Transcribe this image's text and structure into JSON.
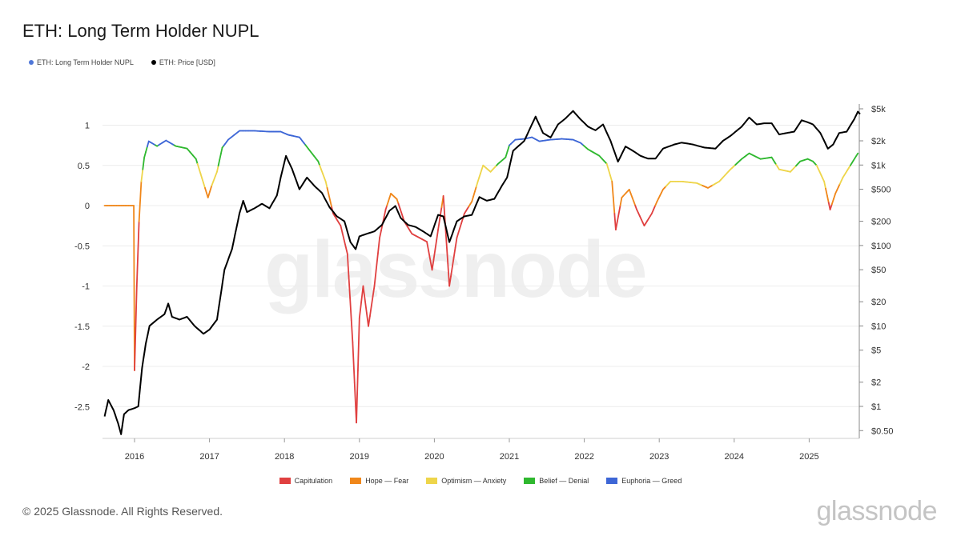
{
  "title": "ETH: Long Term Holder NUPL",
  "legend_top": [
    {
      "label": "ETH: Long Term Holder NUPL",
      "color": "#4f77d8"
    },
    {
      "label": "ETH: Price [USD]",
      "color": "#000000"
    }
  ],
  "legend_bottom": [
    {
      "label": "Capitulation",
      "color": "#e04040"
    },
    {
      "label": "Hope — Fear",
      "color": "#f0871a"
    },
    {
      "label": "Optimism — Anxiety",
      "color": "#eed54a"
    },
    {
      "label": "Belief — Denial",
      "color": "#2fb82f"
    },
    {
      "label": "Euphoria — Greed",
      "color": "#3d66d6"
    }
  ],
  "watermark": "glassnode",
  "footer": {
    "copyright": "© 2025 Glassnode. All Rights Reserved.",
    "brand": "glassnode"
  },
  "chart_data": {
    "type": "line",
    "x_ticks": [
      "2016",
      "2017",
      "2018",
      "2019",
      "2020",
      "2021",
      "2022",
      "2023",
      "2024",
      "2025"
    ],
    "y_left_ticks": [
      "1",
      "0.5",
      "0",
      "-0.5",
      "-1",
      "-1.5",
      "-2",
      "-2.5"
    ],
    "y_left_range": [
      -2.9,
      1.2
    ],
    "y_right_ticks": [
      "$5k",
      "$2k",
      "$1k",
      "$500",
      "$200",
      "$100",
      "$50",
      "$20",
      "$10",
      "$5",
      "$2",
      "$1",
      "$0.50"
    ],
    "y_right_scale": "log",
    "grid": "horizontal",
    "zone_thresholds": {
      "capitulation": 0,
      "hope_fear": 0.25,
      "optimism_anxiety": 0.5,
      "belief_denial": 0.75
    },
    "series": [
      {
        "name": "ETH: Long Term Holder NUPL",
        "axis": "left",
        "points": [
          [
            2015.6,
            0.0
          ],
          [
            2015.9,
            0.0
          ],
          [
            2015.99,
            0.0
          ],
          [
            2016.0,
            -2.05
          ],
          [
            2016.03,
            -1.0
          ],
          [
            2016.06,
            -0.2
          ],
          [
            2016.09,
            0.3
          ],
          [
            2016.13,
            0.6
          ],
          [
            2016.19,
            0.8
          ],
          [
            2016.3,
            0.74
          ],
          [
            2016.42,
            0.81
          ],
          [
            2016.55,
            0.74
          ],
          [
            2016.7,
            0.71
          ],
          [
            2016.82,
            0.58
          ],
          [
            2016.92,
            0.28
          ],
          [
            2016.98,
            0.1
          ],
          [
            2017.03,
            0.25
          ],
          [
            2017.1,
            0.42
          ],
          [
            2017.17,
            0.72
          ],
          [
            2017.25,
            0.82
          ],
          [
            2017.4,
            0.93
          ],
          [
            2017.6,
            0.93
          ],
          [
            2017.8,
            0.92
          ],
          [
            2017.95,
            0.92
          ],
          [
            2018.05,
            0.88
          ],
          [
            2018.2,
            0.85
          ],
          [
            2018.3,
            0.73
          ],
          [
            2018.45,
            0.55
          ],
          [
            2018.55,
            0.3
          ],
          [
            2018.65,
            -0.1
          ],
          [
            2018.75,
            -0.25
          ],
          [
            2018.84,
            -0.6
          ],
          [
            2018.91,
            -1.7
          ],
          [
            2018.96,
            -2.7
          ],
          [
            2019.0,
            -1.4
          ],
          [
            2019.05,
            -1.0
          ],
          [
            2019.12,
            -1.5
          ],
          [
            2019.2,
            -1.0
          ],
          [
            2019.27,
            -0.4
          ],
          [
            2019.35,
            -0.05
          ],
          [
            2019.42,
            0.15
          ],
          [
            2019.5,
            0.08
          ],
          [
            2019.6,
            -0.2
          ],
          [
            2019.7,
            -0.35
          ],
          [
            2019.8,
            -0.4
          ],
          [
            2019.9,
            -0.45
          ],
          [
            2019.97,
            -0.8
          ],
          [
            2020.05,
            -0.3
          ],
          [
            2020.12,
            0.12
          ],
          [
            2020.2,
            -1.0
          ],
          [
            2020.3,
            -0.4
          ],
          [
            2020.4,
            -0.1
          ],
          [
            2020.5,
            0.05
          ],
          [
            2020.58,
            0.3
          ],
          [
            2020.65,
            0.5
          ],
          [
            2020.75,
            0.42
          ],
          [
            2020.85,
            0.52
          ],
          [
            2020.95,
            0.6
          ],
          [
            2021.0,
            0.75
          ],
          [
            2021.08,
            0.82
          ],
          [
            2021.2,
            0.83
          ],
          [
            2021.3,
            0.85
          ],
          [
            2021.4,
            0.8
          ],
          [
            2021.55,
            0.82
          ],
          [
            2021.7,
            0.83
          ],
          [
            2021.85,
            0.82
          ],
          [
            2021.95,
            0.78
          ],
          [
            2022.05,
            0.7
          ],
          [
            2022.2,
            0.62
          ],
          [
            2022.3,
            0.52
          ],
          [
            2022.37,
            0.3
          ],
          [
            2022.42,
            -0.3
          ],
          [
            2022.5,
            0.1
          ],
          [
            2022.6,
            0.2
          ],
          [
            2022.7,
            -0.05
          ],
          [
            2022.8,
            -0.25
          ],
          [
            2022.9,
            -0.1
          ],
          [
            2022.97,
            0.05
          ],
          [
            2023.05,
            0.2
          ],
          [
            2023.15,
            0.3
          ],
          [
            2023.3,
            0.3
          ],
          [
            2023.5,
            0.28
          ],
          [
            2023.65,
            0.22
          ],
          [
            2023.8,
            0.3
          ],
          [
            2023.95,
            0.45
          ],
          [
            2024.1,
            0.58
          ],
          [
            2024.2,
            0.65
          ],
          [
            2024.35,
            0.58
          ],
          [
            2024.5,
            0.6
          ],
          [
            2024.6,
            0.45
          ],
          [
            2024.75,
            0.42
          ],
          [
            2024.88,
            0.55
          ],
          [
            2024.98,
            0.58
          ],
          [
            2025.05,
            0.55
          ],
          [
            2025.1,
            0.5
          ],
          [
            2025.2,
            0.3
          ],
          [
            2025.28,
            -0.05
          ],
          [
            2025.35,
            0.15
          ],
          [
            2025.45,
            0.35
          ],
          [
            2025.55,
            0.5
          ],
          [
            2025.65,
            0.65
          ]
        ]
      },
      {
        "name": "ETH: Price [USD]",
        "axis": "right",
        "points": [
          [
            2015.6,
            0.75
          ],
          [
            2015.65,
            1.2
          ],
          [
            2015.72,
            0.9
          ],
          [
            2015.78,
            0.62
          ],
          [
            2015.82,
            0.45
          ],
          [
            2015.86,
            0.8
          ],
          [
            2015.92,
            0.9
          ],
          [
            2016.0,
            0.95
          ],
          [
            2016.05,
            1.0
          ],
          [
            2016.1,
            3.0
          ],
          [
            2016.15,
            6.0
          ],
          [
            2016.2,
            10.0
          ],
          [
            2016.3,
            12.0
          ],
          [
            2016.4,
            14.0
          ],
          [
            2016.45,
            19.0
          ],
          [
            2016.5,
            13.0
          ],
          [
            2016.6,
            12.0
          ],
          [
            2016.7,
            13.0
          ],
          [
            2016.8,
            10.0
          ],
          [
            2016.92,
            8.0
          ],
          [
            2017.0,
            9.0
          ],
          [
            2017.1,
            12.0
          ],
          [
            2017.2,
            50.0
          ],
          [
            2017.3,
            90.0
          ],
          [
            2017.4,
            250.0
          ],
          [
            2017.45,
            360.0
          ],
          [
            2017.5,
            260.0
          ],
          [
            2017.6,
            290.0
          ],
          [
            2017.7,
            330.0
          ],
          [
            2017.8,
            290.0
          ],
          [
            2017.9,
            420.0
          ],
          [
            2017.95,
            700.0
          ],
          [
            2018.02,
            1300.0
          ],
          [
            2018.1,
            900.0
          ],
          [
            2018.2,
            500.0
          ],
          [
            2018.3,
            700.0
          ],
          [
            2018.4,
            550.0
          ],
          [
            2018.5,
            450.0
          ],
          [
            2018.6,
            300.0
          ],
          [
            2018.7,
            230.0
          ],
          [
            2018.8,
            200.0
          ],
          [
            2018.88,
            110.0
          ],
          [
            2018.95,
            90.0
          ],
          [
            2019.0,
            130.0
          ],
          [
            2019.1,
            140.0
          ],
          [
            2019.2,
            150.0
          ],
          [
            2019.3,
            180.0
          ],
          [
            2019.4,
            270.0
          ],
          [
            2019.48,
            310.0
          ],
          [
            2019.55,
            220.0
          ],
          [
            2019.65,
            180.0
          ],
          [
            2019.75,
            170.0
          ],
          [
            2019.85,
            150.0
          ],
          [
            2019.95,
            130.0
          ],
          [
            2020.05,
            240.0
          ],
          [
            2020.12,
            230.0
          ],
          [
            2020.2,
            110.0
          ],
          [
            2020.3,
            200.0
          ],
          [
            2020.4,
            230.0
          ],
          [
            2020.5,
            240.0
          ],
          [
            2020.6,
            400.0
          ],
          [
            2020.7,
            360.0
          ],
          [
            2020.8,
            380.0
          ],
          [
            2020.9,
            550.0
          ],
          [
            2020.97,
            700.0
          ],
          [
            2021.05,
            1500.0
          ],
          [
            2021.2,
            2000.0
          ],
          [
            2021.35,
            4000.0
          ],
          [
            2021.45,
            2500.0
          ],
          [
            2021.55,
            2200.0
          ],
          [
            2021.65,
            3200.0
          ],
          [
            2021.75,
            3800.0
          ],
          [
            2021.85,
            4700.0
          ],
          [
            2021.95,
            3700.0
          ],
          [
            2022.05,
            3000.0
          ],
          [
            2022.15,
            2700.0
          ],
          [
            2022.25,
            3200.0
          ],
          [
            2022.35,
            2000.0
          ],
          [
            2022.45,
            1100.0
          ],
          [
            2022.55,
            1700.0
          ],
          [
            2022.65,
            1500.0
          ],
          [
            2022.75,
            1300.0
          ],
          [
            2022.85,
            1200.0
          ],
          [
            2022.95,
            1200.0
          ],
          [
            2023.05,
            1600.0
          ],
          [
            2023.2,
            1800.0
          ],
          [
            2023.3,
            1900.0
          ],
          [
            2023.45,
            1800.0
          ],
          [
            2023.6,
            1650.0
          ],
          [
            2023.75,
            1600.0
          ],
          [
            2023.85,
            2000.0
          ],
          [
            2023.95,
            2300.0
          ],
          [
            2024.1,
            3000.0
          ],
          [
            2024.2,
            3900.0
          ],
          [
            2024.3,
            3200.0
          ],
          [
            2024.4,
            3300.0
          ],
          [
            2024.5,
            3300.0
          ],
          [
            2024.6,
            2400.0
          ],
          [
            2024.7,
            2500.0
          ],
          [
            2024.8,
            2600.0
          ],
          [
            2024.9,
            3600.0
          ],
          [
            2024.98,
            3400.0
          ],
          [
            2025.05,
            3200.0
          ],
          [
            2025.15,
            2500.0
          ],
          [
            2025.25,
            1600.0
          ],
          [
            2025.32,
            1800.0
          ],
          [
            2025.4,
            2500.0
          ],
          [
            2025.5,
            2600.0
          ],
          [
            2025.6,
            3700.0
          ],
          [
            2025.65,
            4600.0
          ],
          [
            2025.68,
            4300.0
          ]
        ]
      }
    ]
  }
}
